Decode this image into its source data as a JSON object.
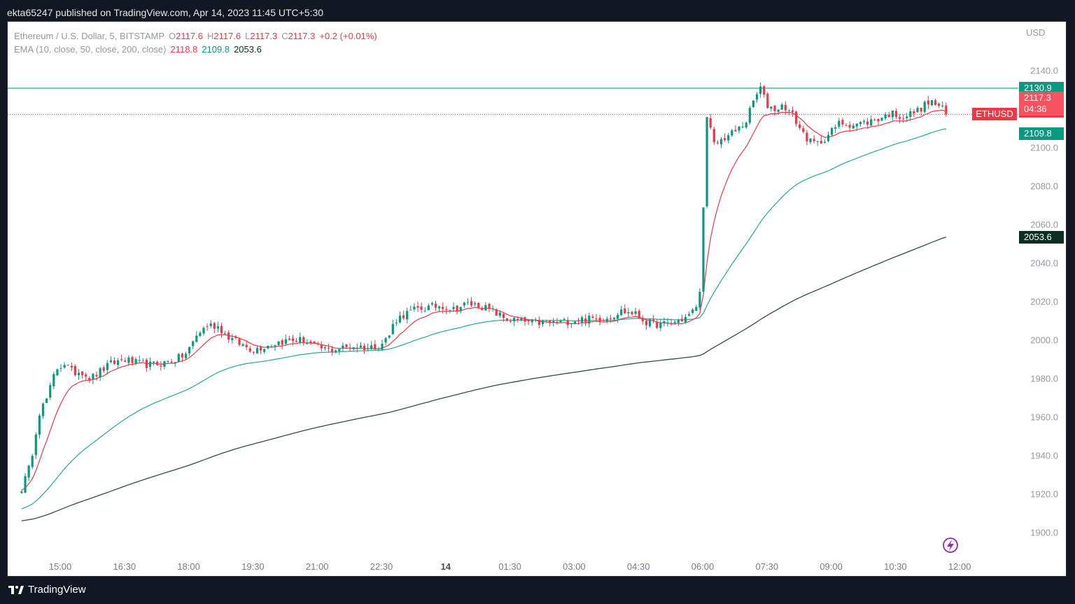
{
  "header": {
    "published": "ekta65247 published on TradingView.com, Apr 14, 2023 11:45 UTC+5:30"
  },
  "legend": {
    "symbol": "Ethereum / U.S. Dollar, 5, BITSTAMP",
    "o_label": "O",
    "o_value": "2117.6",
    "h_label": "H",
    "h_value": "2117.6",
    "l_label": "L",
    "l_value": "2117.3",
    "c_label": "C",
    "c_value": "2117.3",
    "change": "+0.2 (+0.01%)",
    "ema_label": "EMA (10, close, 50, close, 200, close)",
    "ema10": "2118.8",
    "ema50": "2109.8",
    "ema200": "2053.6"
  },
  "axis": {
    "currency": "USD"
  },
  "badges": {
    "horizontal_line": "2130.9",
    "ema10": "2118.8",
    "last_price": "2117.3",
    "countdown": "04:36",
    "ema50": "2109.8",
    "ema200": "2053.6",
    "symbol_tag": "ETHUSD"
  },
  "footer": {
    "brand": "TradingView"
  },
  "icons": {
    "logo": "tradingview-logo-icon",
    "alert": "lightning-alert-icon"
  },
  "colors": {
    "up": "#089981",
    "down": "#f23645",
    "ema10": "#f23645",
    "ema50": "#22ab94",
    "ema200": "#2f4f43",
    "hline": "#22ab94",
    "alert": "#9c27b0"
  },
  "chart_data": {
    "type": "candlestick",
    "title": "Ethereum / U.S. Dollar, 5, BITSTAMP",
    "ylabel": "USD",
    "ylim": [
      1885,
      2155
    ],
    "y_ticks": [
      1900,
      1920,
      1940,
      1960,
      1980,
      2000,
      2020,
      2040,
      2060,
      2080,
      2100,
      2120,
      2140
    ],
    "x_ticks": [
      "15:00",
      "16:30",
      "18:00",
      "19:30",
      "21:00",
      "22:30",
      "14",
      "01:30",
      "03:00",
      "04:30",
      "06:00",
      "07:30",
      "09:00",
      "10:30",
      "12:00"
    ],
    "x_tick_hours": [
      15,
      16.5,
      18,
      19.5,
      21,
      22.5,
      24,
      25.5,
      27,
      28.5,
      30,
      31.5,
      33,
      34.5,
      36
    ],
    "x_start_hour": 14.1,
    "last_close": 2117.3,
    "horizontal_line": 2130.9,
    "close_anchors": [
      [
        14.1,
        1923
      ],
      [
        14.3,
        1935
      ],
      [
        14.5,
        1962
      ],
      [
        14.7,
        1970
      ],
      [
        14.9,
        1985
      ],
      [
        15.1,
        1988
      ],
      [
        15.3,
        1983
      ],
      [
        15.5,
        1984
      ],
      [
        15.7,
        1980
      ],
      [
        15.95,
        1984
      ],
      [
        16.2,
        1988
      ],
      [
        16.5,
        1990
      ],
      [
        16.8,
        1988
      ],
      [
        17.1,
        1987
      ],
      [
        17.4,
        1988
      ],
      [
        17.7,
        1990
      ],
      [
        17.95,
        1993
      ],
      [
        18.2,
        2003
      ],
      [
        18.45,
        2008
      ],
      [
        18.7,
        2007
      ],
      [
        18.9,
        2002
      ],
      [
        19.2,
        1998
      ],
      [
        19.5,
        1995
      ],
      [
        19.8,
        1997
      ],
      [
        20.1,
        1999
      ],
      [
        20.4,
        2000
      ],
      [
        20.7,
        2000
      ],
      [
        21.0,
        1996
      ],
      [
        21.3,
        1995
      ],
      [
        21.6,
        1996
      ],
      [
        21.9,
        1997
      ],
      [
        22.2,
        1996
      ],
      [
        22.5,
        1998
      ],
      [
        22.7,
        2003
      ],
      [
        22.8,
        2010
      ],
      [
        23.0,
        2013
      ],
      [
        23.3,
        2016
      ],
      [
        23.6,
        2017
      ],
      [
        23.9,
        2018
      ],
      [
        24.2,
        2016
      ],
      [
        24.5,
        2019
      ],
      [
        24.8,
        2018
      ],
      [
        25.1,
        2015
      ],
      [
        25.4,
        2011
      ],
      [
        25.7,
        2010
      ],
      [
        26.0,
        2009
      ],
      [
        26.3,
        2009
      ],
      [
        26.6,
        2009
      ],
      [
        26.9,
        2010
      ],
      [
        27.2,
        2011
      ],
      [
        27.5,
        2011
      ],
      [
        27.8,
        2012
      ],
      [
        28.1,
        2015
      ],
      [
        28.4,
        2014
      ],
      [
        28.7,
        2009
      ],
      [
        29.0,
        2008
      ],
      [
        29.3,
        2009
      ],
      [
        29.55,
        2011
      ],
      [
        29.75,
        2014
      ],
      [
        29.9,
        2020
      ],
      [
        29.98,
        2030
      ],
      [
        30.05,
        2108
      ],
      [
        30.12,
        2117
      ],
      [
        30.25,
        2101
      ],
      [
        30.5,
        2105
      ],
      [
        30.8,
        2109
      ],
      [
        31.0,
        2113
      ],
      [
        31.2,
        2125
      ],
      [
        31.35,
        2131
      ],
      [
        31.5,
        2122
      ],
      [
        31.7,
        2120
      ],
      [
        31.9,
        2122
      ],
      [
        32.1,
        2117
      ],
      [
        32.3,
        2109
      ],
      [
        32.5,
        2103
      ],
      [
        32.7,
        2102
      ],
      [
        32.95,
        2107
      ],
      [
        33.2,
        2113
      ],
      [
        33.5,
        2112
      ],
      [
        33.8,
        2113
      ],
      [
        34.1,
        2115
      ],
      [
        34.4,
        2118
      ],
      [
        34.7,
        2116
      ],
      [
        35.0,
        2119
      ],
      [
        35.3,
        2124
      ],
      [
        35.5,
        2122
      ],
      [
        35.65,
        2119
      ],
      [
        35.75,
        2117.3
      ]
    ],
    "ema10_end": 2118.8,
    "ema50_end": 2109.8,
    "ema200_end": 2053.6,
    "series": [
      {
        "name": "EMA 10",
        "period": 10
      },
      {
        "name": "EMA 50",
        "period": 50
      },
      {
        "name": "EMA 200",
        "period": 200
      }
    ]
  }
}
